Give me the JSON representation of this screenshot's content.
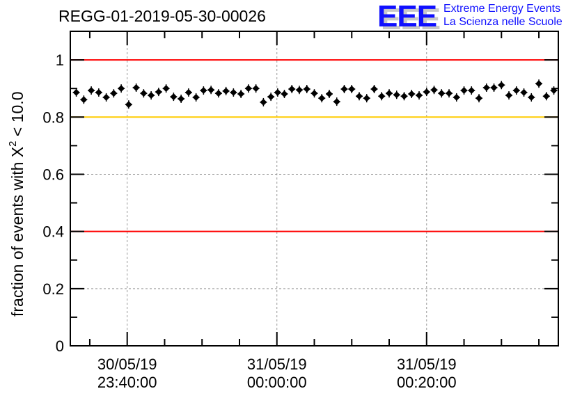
{
  "chart_data": {
    "type": "scatter",
    "title": "REGG-01-2019-05-30-00026",
    "xlabel": "",
    "ylabel": "fraction of events with X",
    "ylabel_sup": "2",
    "ylabel_tail": " < 10.0",
    "x_unit": "minutes relative to 31/05/19 00:00:00",
    "xlim": [
      -27.6,
      37.6
    ],
    "ylim": [
      0,
      1.1
    ],
    "grid": true,
    "yticks": [
      0,
      0.2,
      0.4,
      0.6,
      0.8,
      1
    ],
    "ytick_labels": [
      "0",
      "0.2",
      "0.4",
      "0.6",
      "0.8",
      "1"
    ],
    "xticks": [
      {
        "value": -20,
        "date": "30/05/19",
        "time": "23:40:00"
      },
      {
        "value": 0,
        "date": "31/05/19",
        "time": "00:00:00"
      },
      {
        "value": 20,
        "date": "31/05/19",
        "time": "00:20:00"
      }
    ],
    "reference_lines": [
      {
        "y": 1.0,
        "color": "#ff0000"
      },
      {
        "y": 0.8,
        "color": "#ffcc00"
      },
      {
        "y": 0.4,
        "color": "#ff0000"
      }
    ],
    "series": [
      {
        "name": "fraction",
        "color": "#000000",
        "x": [
          -26.8,
          -25.8,
          -24.8,
          -23.8,
          -22.8,
          -21.8,
          -20.8,
          -19.8,
          -18.8,
          -17.8,
          -16.8,
          -15.8,
          -14.8,
          -13.8,
          -12.8,
          -11.8,
          -10.8,
          -9.8,
          -8.8,
          -7.8,
          -6.8,
          -5.8,
          -4.8,
          -3.8,
          -2.8,
          -1.8,
          -0.8,
          0.1,
          1.0,
          2.0,
          3.0,
          4.0,
          5.0,
          6.0,
          7.0,
          8.0,
          9.0,
          10.0,
          11.0,
          12.0,
          13.0,
          14.0,
          15.0,
          16.0,
          17.0,
          18.0,
          19.0,
          20.0,
          21.0,
          22.0,
          23.0,
          24.0,
          25.0,
          26.0,
          27.0,
          28.0,
          29.0,
          30.0,
          31.0,
          32.0,
          33.0,
          34.0,
          35.0,
          36.0,
          37.0
        ],
        "values": [
          0.886,
          0.861,
          0.893,
          0.886,
          0.869,
          0.883,
          0.9,
          0.844,
          0.903,
          0.883,
          0.876,
          0.888,
          0.9,
          0.871,
          0.864,
          0.886,
          0.869,
          0.893,
          0.895,
          0.883,
          0.891,
          0.886,
          0.881,
          0.9,
          0.9,
          0.852,
          0.871,
          0.886,
          0.881,
          0.898,
          0.895,
          0.898,
          0.883,
          0.866,
          0.881,
          0.854,
          0.898,
          0.898,
          0.873,
          0.866,
          0.898,
          0.873,
          0.883,
          0.878,
          0.873,
          0.881,
          0.876,
          0.888,
          0.895,
          0.883,
          0.883,
          0.869,
          0.893,
          0.893,
          0.866,
          0.903,
          0.903,
          0.912,
          0.876,
          0.893,
          0.886,
          0.869,
          0.917,
          0.873,
          0.893
        ]
      }
    ]
  },
  "logo": {
    "mark": "EEE",
    "line1": "Extreme Energy Events",
    "line2": "La Scienza nelle Scuole"
  }
}
